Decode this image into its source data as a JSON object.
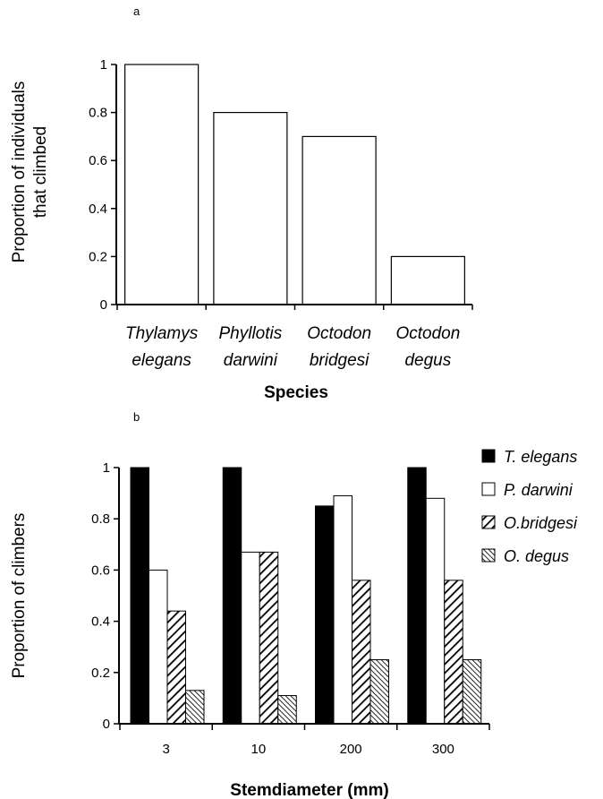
{
  "chart_data": [
    {
      "panel": "a",
      "type": "bar",
      "categories": [
        [
          "Thylamys",
          "elegans"
        ],
        [
          "Phyllotis",
          "darwini"
        ],
        [
          "Octodon",
          "bridgesi"
        ],
        [
          "Octodon",
          "degus"
        ]
      ],
      "values": [
        1.0,
        0.8,
        0.7,
        0.2
      ],
      "xlabel": "Species",
      "ylabel": [
        "Proportion of individuals",
        "that climbed"
      ],
      "ylim": [
        0,
        1
      ],
      "yticks": [
        "0",
        "0.2",
        "0.4",
        "0.6",
        "0.8",
        "1"
      ],
      "bar_fill": "#ffffff",
      "grid": false,
      "legend": "none"
    },
    {
      "panel": "b",
      "type": "bar",
      "categories": [
        "3",
        "10",
        "200",
        "300"
      ],
      "series": [
        {
          "name": "T. elegans",
          "values": [
            1.0,
            1.0,
            0.85,
            1.0
          ],
          "fill": "solid-black"
        },
        {
          "name": "P. darwini",
          "values": [
            0.6,
            0.67,
            0.89,
            0.88
          ],
          "fill": "white"
        },
        {
          "name": "O.bridgesi",
          "values": [
            0.44,
            0.67,
            0.56,
            0.56
          ],
          "fill": "wide-diagonal-hatch"
        },
        {
          "name": "O. degus",
          "values": [
            0.13,
            0.11,
            0.25,
            0.25
          ],
          "fill": "fine-diagonal-hatch"
        }
      ],
      "xlabel": "Stemdiameter (mm)",
      "ylabel": "Proportion of climbers",
      "ylim": [
        0,
        1
      ],
      "yticks": [
        "0",
        "0.2",
        "0.4",
        "0.6",
        "0.8",
        "1"
      ],
      "grid": false,
      "legend": "top-right"
    }
  ]
}
